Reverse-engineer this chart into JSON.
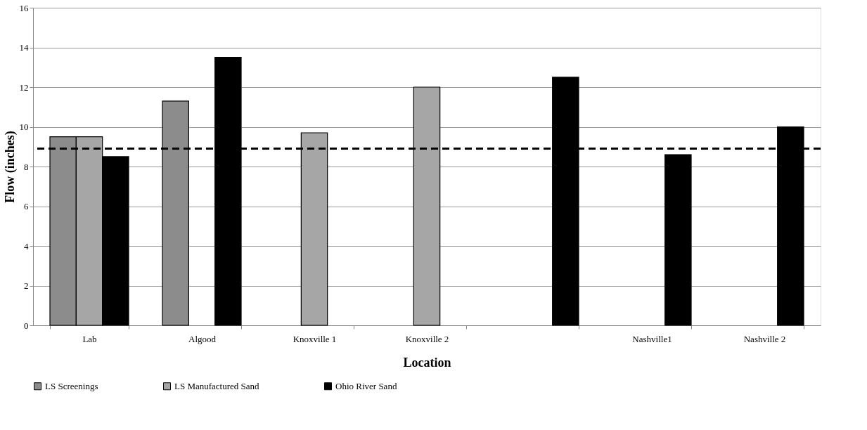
{
  "chart_data": {
    "type": "bar",
    "xlabel": "Location",
    "ylabel": "Flow (inches)",
    "categories": [
      "Lab",
      "Algood",
      "Knoxville 1",
      "Knoxville 2",
      null,
      "Nashville1",
      "Nashville 2"
    ],
    "series": [
      {
        "name": "LS Screenings",
        "color": "#8c8c8c",
        "values": [
          9.5,
          11.3,
          null,
          null,
          null,
          null,
          null
        ]
      },
      {
        "name": "LS Manufactured Sand",
        "color": "#a6a6a6",
        "values": [
          9.5,
          null,
          9.7,
          12.0,
          null,
          null,
          null
        ]
      },
      {
        "name": "Ohio River Sand",
        "color": "#000000",
        "values": [
          8.5,
          13.5,
          null,
          null,
          12.5,
          8.6,
          10.0
        ]
      }
    ],
    "ylim": [
      0,
      16
    ],
    "yticks": [
      0,
      2,
      4,
      6,
      8,
      10,
      12,
      14,
      16
    ],
    "grid": "y",
    "legend": "bottom",
    "ref_lines": [
      {
        "axis": "y",
        "value": 8.9,
        "color": "#000000",
        "line_style": "dashed"
      }
    ]
  }
}
